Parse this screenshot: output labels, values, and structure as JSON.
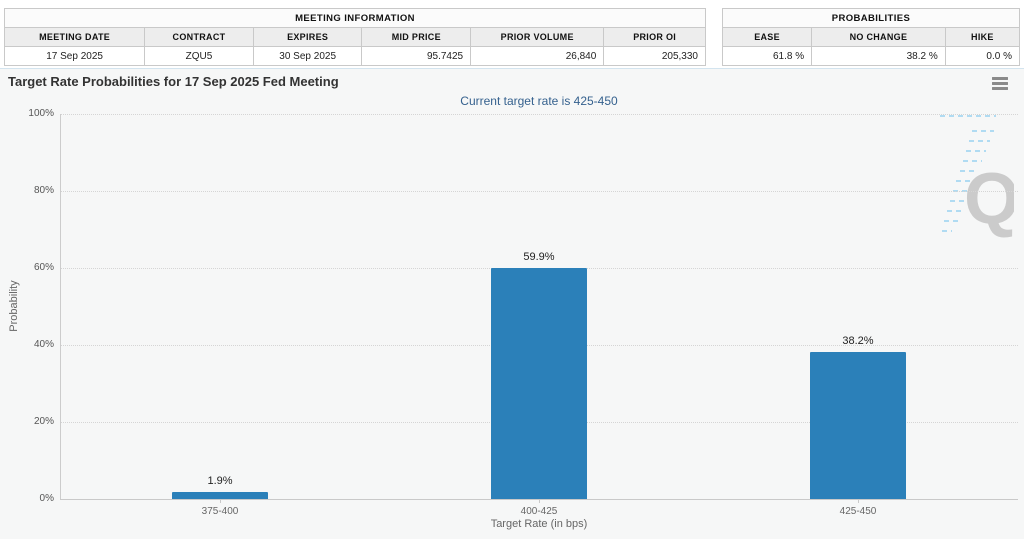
{
  "meeting_info": {
    "title": "MEETING INFORMATION",
    "columns": [
      "MEETING DATE",
      "CONTRACT",
      "EXPIRES",
      "MID PRICE",
      "PRIOR VOLUME",
      "PRIOR OI"
    ],
    "values": [
      "17 Sep 2025",
      "ZQU5",
      "30 Sep 2025",
      "95.7425",
      "26,840",
      "205,330"
    ]
  },
  "probabilities": {
    "title": "PROBABILITIES",
    "columns": [
      "EASE",
      "NO CHANGE",
      "HIKE"
    ],
    "values": [
      "61.8 %",
      "38.2 %",
      "0.0 %"
    ]
  },
  "chart_data": {
    "type": "bar",
    "title": "Target Rate Probabilities for 17 Sep 2025 Fed Meeting",
    "subtitle": "Current target rate is 425-450",
    "categories": [
      "375-400",
      "400-425",
      "425-450"
    ],
    "values": [
      1.9,
      59.9,
      38.2
    ],
    "data_labels": [
      "1.9%",
      "59.9%",
      "38.2%"
    ],
    "xlabel": "Target Rate (in bps)",
    "ylabel": "Probability",
    "ylim": [
      0,
      100
    ],
    "yticks": [
      0,
      20,
      40,
      60,
      80,
      100
    ],
    "ytick_labels": [
      "0%",
      "20%",
      "40%",
      "60%",
      "80%",
      "100%"
    ],
    "grid": "dotted horizontal gridlines",
    "legend": "none",
    "bar_color": "#2b80b9"
  },
  "colors": {
    "bar": "#2b80b9",
    "subtitle_text": "#35618e",
    "chart_background": "#f6f7f7",
    "axis_text": "#666666"
  },
  "menu": {
    "label": "chart context menu"
  }
}
